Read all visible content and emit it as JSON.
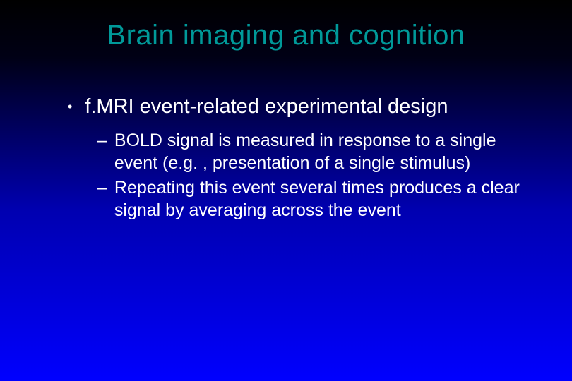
{
  "slide": {
    "background_gradient": {
      "start": "#000000",
      "mid1": "#000015",
      "mid2": "#000050",
      "mid3": "#0000b0",
      "end": "#0000ff"
    },
    "title": {
      "text": "Brain imaging and cognition",
      "color": "#009999",
      "fontsize": 40
    },
    "body_color": "#ffffff",
    "bullets": [
      {
        "level": 1,
        "marker": "•",
        "text": "f.MRI event-related experimental design",
        "fontsize": 29,
        "children": [
          {
            "level": 2,
            "marker": "–",
            "text": "BOLD signal is measured in response to a single event (e.g. , presentation of a single stimulus)",
            "fontsize": 25
          },
          {
            "level": 2,
            "marker": "–",
            "text": "Repeating this event several times produces a clear signal by averaging across the event",
            "fontsize": 25
          }
        ]
      }
    ]
  }
}
